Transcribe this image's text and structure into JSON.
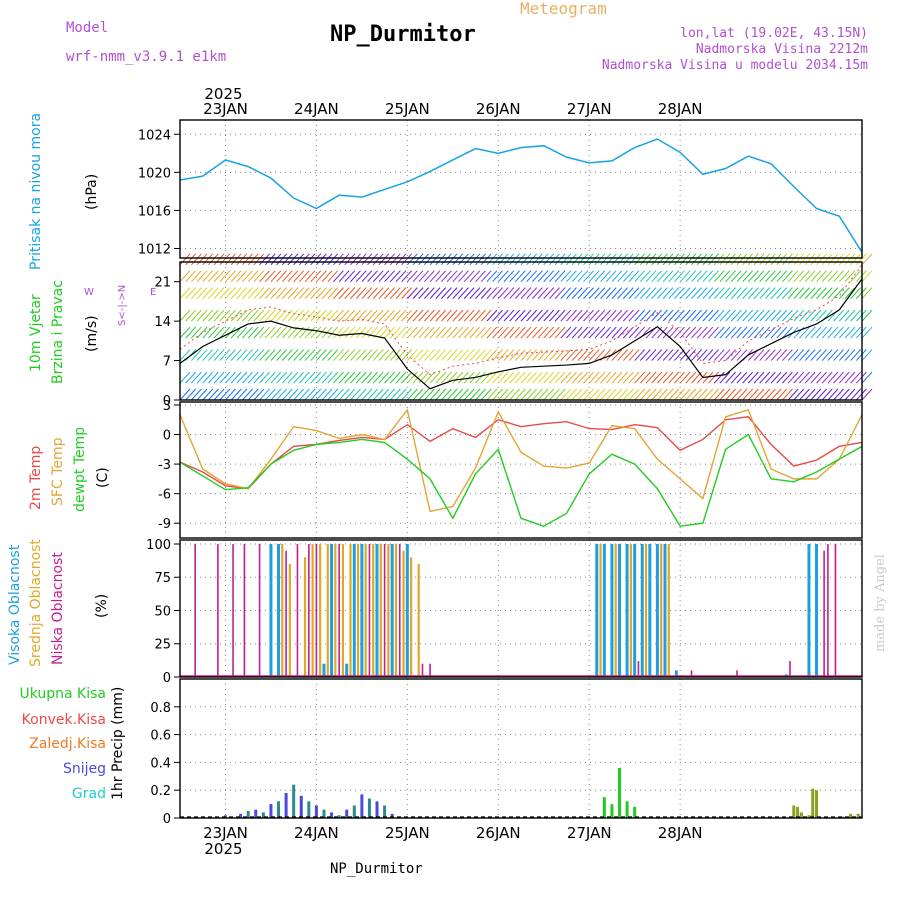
{
  "header": {
    "model_label": "Model",
    "model_name": "wrf-nmm_v3.9.1  e1km",
    "title": "NP_Durmitor",
    "meteogram": "Meteogram",
    "coords": "lon,lat (19.02E, 43.15N)",
    "altitude": "Nadmorska Visina 2212m",
    "model_altitude": "Nadmorska Visina u modelu 2034.15m",
    "year_top": "2025",
    "year_bottom": "2025",
    "footer_name": "NP_Durmitor",
    "credit": "made by Angel"
  },
  "dates": [
    "23JAN",
    "24JAN",
    "25JAN",
    "26JAN",
    "27JAN",
    "28JAN"
  ],
  "panels": {
    "pressure": {
      "label": "Pritisak na nivou mora",
      "unit": "(hPa)",
      "yticks": [
        "1012",
        "1016",
        "1020",
        "1024"
      ]
    },
    "wind": {
      "label1": "10m Vjetar",
      "label2": "Brzina i Pravac",
      "unit": "(m/s)",
      "yticks": [
        "0",
        "7",
        "14",
        "21"
      ],
      "dir_n": "N",
      "dir_s": "S",
      "dir_w": "W",
      "dir_e": "E",
      "dir_mid": "<-|->"
    },
    "temp": {
      "label1": "2m Temp",
      "label2": "SFC Temp",
      "label3": "dewpt Temp",
      "unit": "(C)",
      "yticks": [
        "-9",
        "-6",
        "-3",
        "0",
        "3"
      ]
    },
    "cloud": {
      "label1": "Visoka Oblacnost",
      "label2": "Srednja Oblacnost",
      "label3": "Niska Oblacnost",
      "unit": "(%)",
      "yticks": [
        "0",
        "25",
        "50",
        "75",
        "100"
      ]
    },
    "precip": {
      "axis_label": "1hr Precip (mm)",
      "yticks": [
        "0",
        "0.2",
        "0.4",
        "0.6",
        "0.8"
      ],
      "legend": [
        "Ukupna Kisa",
        "Konvek.Kisa",
        "Zaledj.Kisa",
        "Snijeg",
        "Grad"
      ]
    }
  },
  "colors": {
    "pressure": "#19a3e0",
    "temp2m": "#e84a4a",
    "sfc": "#e4a534",
    "dewpt": "#22cc22",
    "high_cloud": "#1ea0e0",
    "mid_cloud": "#e0a828",
    "low_cloud": "#c0208e",
    "rain": "#22cc22",
    "conv": "#e84a4a",
    "frz": "#f07a28",
    "snow": "#4a4ae0",
    "hail": "#22cccc"
  },
  "chart_data": [
    {
      "type": "line",
      "title": "Pritisak na nivou mora",
      "x_unit": "hours from 22JAN 12UTC",
      "ylabel": "(hPa)",
      "ylim": [
        1011,
        1025.5
      ],
      "x": [
        0,
        6,
        12,
        18,
        24,
        30,
        36,
        42,
        48,
        54,
        60,
        66,
        72,
        78,
        84,
        90,
        96,
        102,
        108,
        114,
        120,
        126,
        132,
        138,
        144,
        150,
        156,
        162,
        168,
        174,
        180
      ],
      "series": [
        {
          "name": "Pritisak na nivou mora",
          "values": [
            1019.2,
            1019.6,
            1021.3,
            1020.6,
            1019.4,
            1017.3,
            1016.2,
            1017.6,
            1017.4,
            1018.2,
            1019.0,
            1020.1,
            1021.3,
            1022.5,
            1022.0,
            1022.6,
            1022.8,
            1021.6,
            1021.0,
            1021.2,
            1022.6,
            1023.5,
            1022.1,
            1019.8,
            1020.4,
            1021.7,
            1020.9,
            1018.5,
            1016.2,
            1015.4,
            1011.6
          ]
        }
      ]
    },
    {
      "type": "line",
      "title": "10m Vjetar Brzina i Pravac",
      "ylabel": "(m/s)",
      "ylim": [
        0,
        24.5
      ],
      "x": [
        0,
        6,
        12,
        18,
        24,
        30,
        36,
        42,
        48,
        54,
        60,
        66,
        72,
        78,
        84,
        90,
        96,
        102,
        108,
        114,
        120,
        126,
        132,
        138,
        144,
        150,
        156,
        162,
        168,
        174,
        180
      ],
      "series": [
        {
          "name": "10m Vjetar Brzina i Pravac",
          "values": [
            6.5,
            9.5,
            11.5,
            13.5,
            14.0,
            12.8,
            12.3,
            11.5,
            11.8,
            11.0,
            5.5,
            2.0,
            3.5,
            4.0,
            5.0,
            5.8,
            6.0,
            6.2,
            6.5,
            8.0,
            10.5,
            13.0,
            9.5,
            4.0,
            4.5,
            8.0,
            10.0,
            12.0,
            13.5,
            16.0,
            21.5
          ]
        }
      ]
    },
    {
      "type": "line",
      "title": "2m Temp / SFC Temp / dewpt Temp",
      "ylabel": "(C)",
      "ylim": [
        -10.5,
        3.3
      ],
      "x": [
        0,
        6,
        12,
        18,
        24,
        30,
        36,
        42,
        48,
        54,
        60,
        66,
        72,
        78,
        84,
        90,
        96,
        102,
        108,
        114,
        120,
        126,
        132,
        138,
        144,
        150,
        156,
        162,
        168,
        174,
        180
      ],
      "series": [
        {
          "name": "2m Temp",
          "values": [
            -2.8,
            -3.8,
            -5.2,
            -5.5,
            -3.0,
            -1.2,
            -1.0,
            -0.6,
            -0.3,
            -0.5,
            1.0,
            -0.7,
            0.6,
            -0.3,
            1.5,
            0.8,
            1.1,
            1.3,
            0.6,
            0.5,
            1.0,
            0.7,
            -1.6,
            -0.5,
            1.5,
            1.8,
            -1.0,
            -3.2,
            -2.6,
            -1.2,
            -0.8
          ]
        },
        {
          "name": "SFC Temp",
          "values": [
            2.0,
            -3.5,
            -5.0,
            -5.5,
            -2.5,
            0.8,
            0.4,
            -0.4,
            0.0,
            -0.5,
            2.5,
            -7.8,
            -7.3,
            -3.4,
            2.3,
            -1.8,
            -3.2,
            -3.4,
            -2.9,
            0.9,
            0.6,
            -2.5,
            -4.5,
            -6.5,
            1.8,
            2.5,
            -3.5,
            -4.5,
            -4.5,
            -2.5,
            2.0
          ]
        },
        {
          "name": "dewpt Temp",
          "values": [
            -2.8,
            -4.2,
            -5.6,
            -5.4,
            -3.0,
            -1.6,
            -1.0,
            -0.8,
            -0.5,
            -0.8,
            -2.5,
            -4.5,
            -8.5,
            -4.0,
            -1.5,
            -8.5,
            -9.3,
            -8.0,
            -4.0,
            -2.0,
            -3.0,
            -5.5,
            -9.3,
            -9.0,
            -1.5,
            0.0,
            -4.5,
            -4.8,
            -3.8,
            -2.5,
            -1.2
          ]
        }
      ]
    },
    {
      "type": "bar",
      "title": "Visoka / Srednja / Niska Oblacnost",
      "ylabel": "(%)",
      "ylim": [
        0,
        103
      ],
      "series": [
        {
          "name": "Visoka Oblacnost",
          "x": [
            24,
            26,
            38,
            40,
            44,
            46,
            48,
            52,
            56,
            60,
            110,
            112,
            114,
            116,
            118,
            120,
            122,
            124,
            126,
            128,
            131,
            160,
            166,
            168
          ],
          "values": [
            100,
            100,
            10,
            100,
            10,
            100,
            100,
            100,
            100,
            100,
            100,
            100,
            100,
            100,
            100,
            100,
            100,
            100,
            100,
            100,
            5,
            2,
            100,
            100
          ]
        },
        {
          "name": "Srednja Oblacnost",
          "x": [
            27,
            29,
            33,
            35,
            37,
            39,
            41,
            43,
            45,
            47,
            49,
            51,
            53,
            55,
            57,
            59,
            61,
            63,
            111,
            115,
            119,
            123,
            127,
            129
          ],
          "values": [
            100,
            85,
            90,
            100,
            100,
            100,
            100,
            100,
            100,
            100,
            100,
            100,
            100,
            100,
            100,
            95,
            90,
            85,
            100,
            100,
            100,
            100,
            100,
            100
          ]
        },
        {
          "name": "Niska Oblacnost",
          "x": [
            4,
            10,
            14,
            17,
            21,
            28,
            31,
            34,
            36,
            42,
            50,
            54,
            58,
            64,
            66,
            121,
            135,
            147,
            161,
            170,
            171,
            173
          ],
          "values": [
            100,
            100,
            100,
            100,
            100,
            95,
            100,
            100,
            100,
            100,
            100,
            100,
            100,
            10,
            10,
            12,
            5,
            5,
            12,
            95,
            100,
            100
          ]
        }
      ]
    },
    {
      "type": "bar",
      "title": "1hr Precip",
      "ylabel": "1hr Precip (mm)",
      "ylim": [
        0,
        1.0
      ],
      "series": [
        {
          "name": "Ukupna Kisa",
          "x": [
            112,
            114,
            116,
            118,
            120,
            162,
            163,
            164,
            166,
            167,
            168,
            175,
            176,
            177,
            179
          ],
          "values": [
            0.15,
            0.1,
            0.36,
            0.12,
            0.08,
            0.09,
            0.08,
            0.04,
            0.02,
            0.21,
            0.2,
            0.01,
            0.01,
            0.03,
            0.03
          ]
        },
        {
          "name": "Snijeg",
          "x": [
            10,
            12,
            16,
            18,
            20,
            22,
            24,
            26,
            28,
            30,
            32,
            34,
            36,
            38,
            40,
            42,
            44,
            46,
            48,
            50,
            52,
            54,
            56,
            58
          ],
          "values": [
            0.01,
            0.02,
            0.03,
            0.05,
            0.06,
            0.04,
            0.1,
            0.12,
            0.18,
            0.24,
            0.16,
            0.12,
            0.09,
            0.06,
            0.04,
            0.02,
            0.06,
            0.09,
            0.17,
            0.14,
            0.12,
            0.09,
            0.03,
            0.01
          ]
        }
      ]
    }
  ]
}
